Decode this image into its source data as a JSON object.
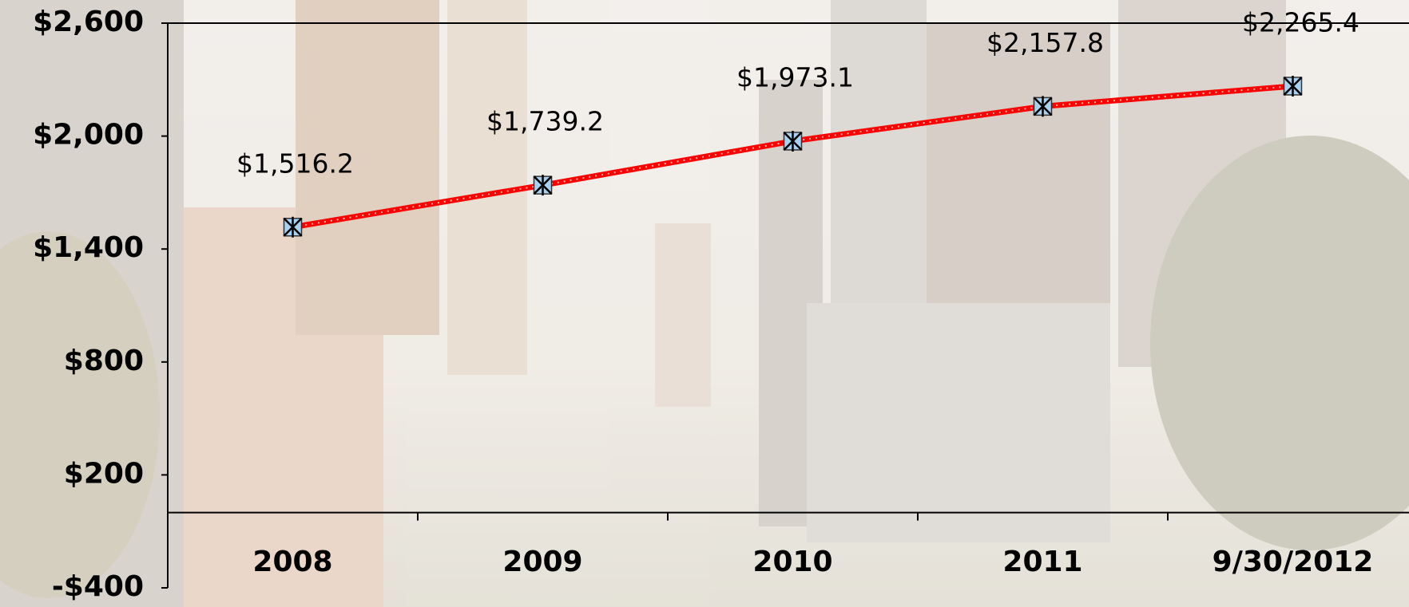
{
  "chart_data": {
    "type": "line",
    "categories": [
      "2008",
      "2009",
      "2010",
      "2011",
      "9/30/2012"
    ],
    "series": [
      {
        "color": "#ff0000",
        "marker_color": "#a8d0f0",
        "values": [
          1516.2,
          1739.2,
          1973.1,
          2157.8,
          2265.4
        ],
        "value_labels": [
          "$1,516.2",
          "$1,739.2",
          "$1,973.1",
          "$2,157.8",
          "$2,265.4"
        ]
      }
    ],
    "ylim": [
      -400,
      2600
    ],
    "yticks": [
      {
        "value": -400,
        "label": "-$400"
      },
      {
        "value": 200,
        "label": "$200"
      },
      {
        "value": 800,
        "label": "$800"
      },
      {
        "value": 1400,
        "label": "$1,400"
      },
      {
        "value": 2000,
        "label": "$2,000"
      },
      {
        "value": 2600,
        "label": "$2,600"
      }
    ]
  }
}
